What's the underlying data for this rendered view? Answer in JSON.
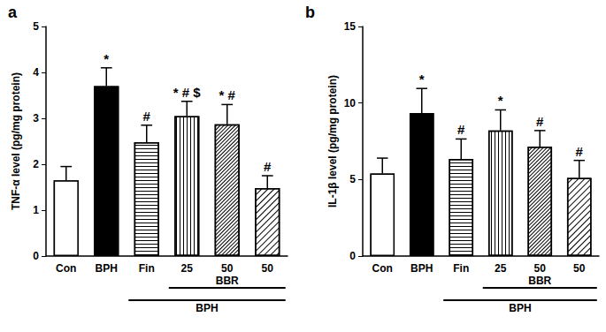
{
  "chart_data": [
    {
      "type": "bar",
      "title": "a",
      "ylabel": "TNF-α level (pg/mg protein)",
      "categories": [
        "Con",
        "BPH",
        "Fin",
        "25",
        "50",
        "50"
      ],
      "values": [
        1.65,
        3.7,
        2.48,
        3.05,
        2.87,
        1.48
      ],
      "errors": [
        0.3,
        0.4,
        0.37,
        0.32,
        0.43,
        0.27
      ],
      "annotations": [
        null,
        "*",
        "#",
        "* # $",
        "* #",
        "#"
      ],
      "colors": [
        "#ffffff",
        "#000000",
        "#ffffff",
        "#ffffff",
        "#ffffff",
        "#ffffff"
      ],
      "brackets": [
        {
          "label": "BBR",
          "start": 3,
          "end": 5
        },
        {
          "label": "BPH",
          "start": 2,
          "end": 5
        }
      ],
      "ylim": [
        0,
        5
      ],
      "yticks": [
        0,
        1,
        2,
        3,
        4,
        5
      ],
      "grid": false
    },
    {
      "type": "bar",
      "title": "b",
      "ylabel": "IL-1β level (pg/mg protein)",
      "categories": [
        "Con",
        "BPH",
        "Fin",
        "25",
        "50",
        "50"
      ],
      "values": [
        5.4,
        9.35,
        6.35,
        8.2,
        7.15,
        5.1
      ],
      "errors": [
        1.0,
        1.6,
        1.3,
        1.35,
        1.05,
        1.15
      ],
      "annotations": [
        null,
        "*",
        "#",
        "*",
        "#",
        "#"
      ],
      "colors": [
        "#ffffff",
        "#000000",
        "#ffffff",
        "#ffffff",
        "#ffffff",
        "#ffffff"
      ],
      "brackets": [
        {
          "label": "BBR",
          "start": 3,
          "end": 5
        },
        {
          "label": "BPH",
          "start": 2,
          "end": 5
        }
      ],
      "ylim": [
        0,
        15
      ],
      "yticks": [
        0,
        5,
        10,
        15
      ],
      "grid": false
    }
  ]
}
